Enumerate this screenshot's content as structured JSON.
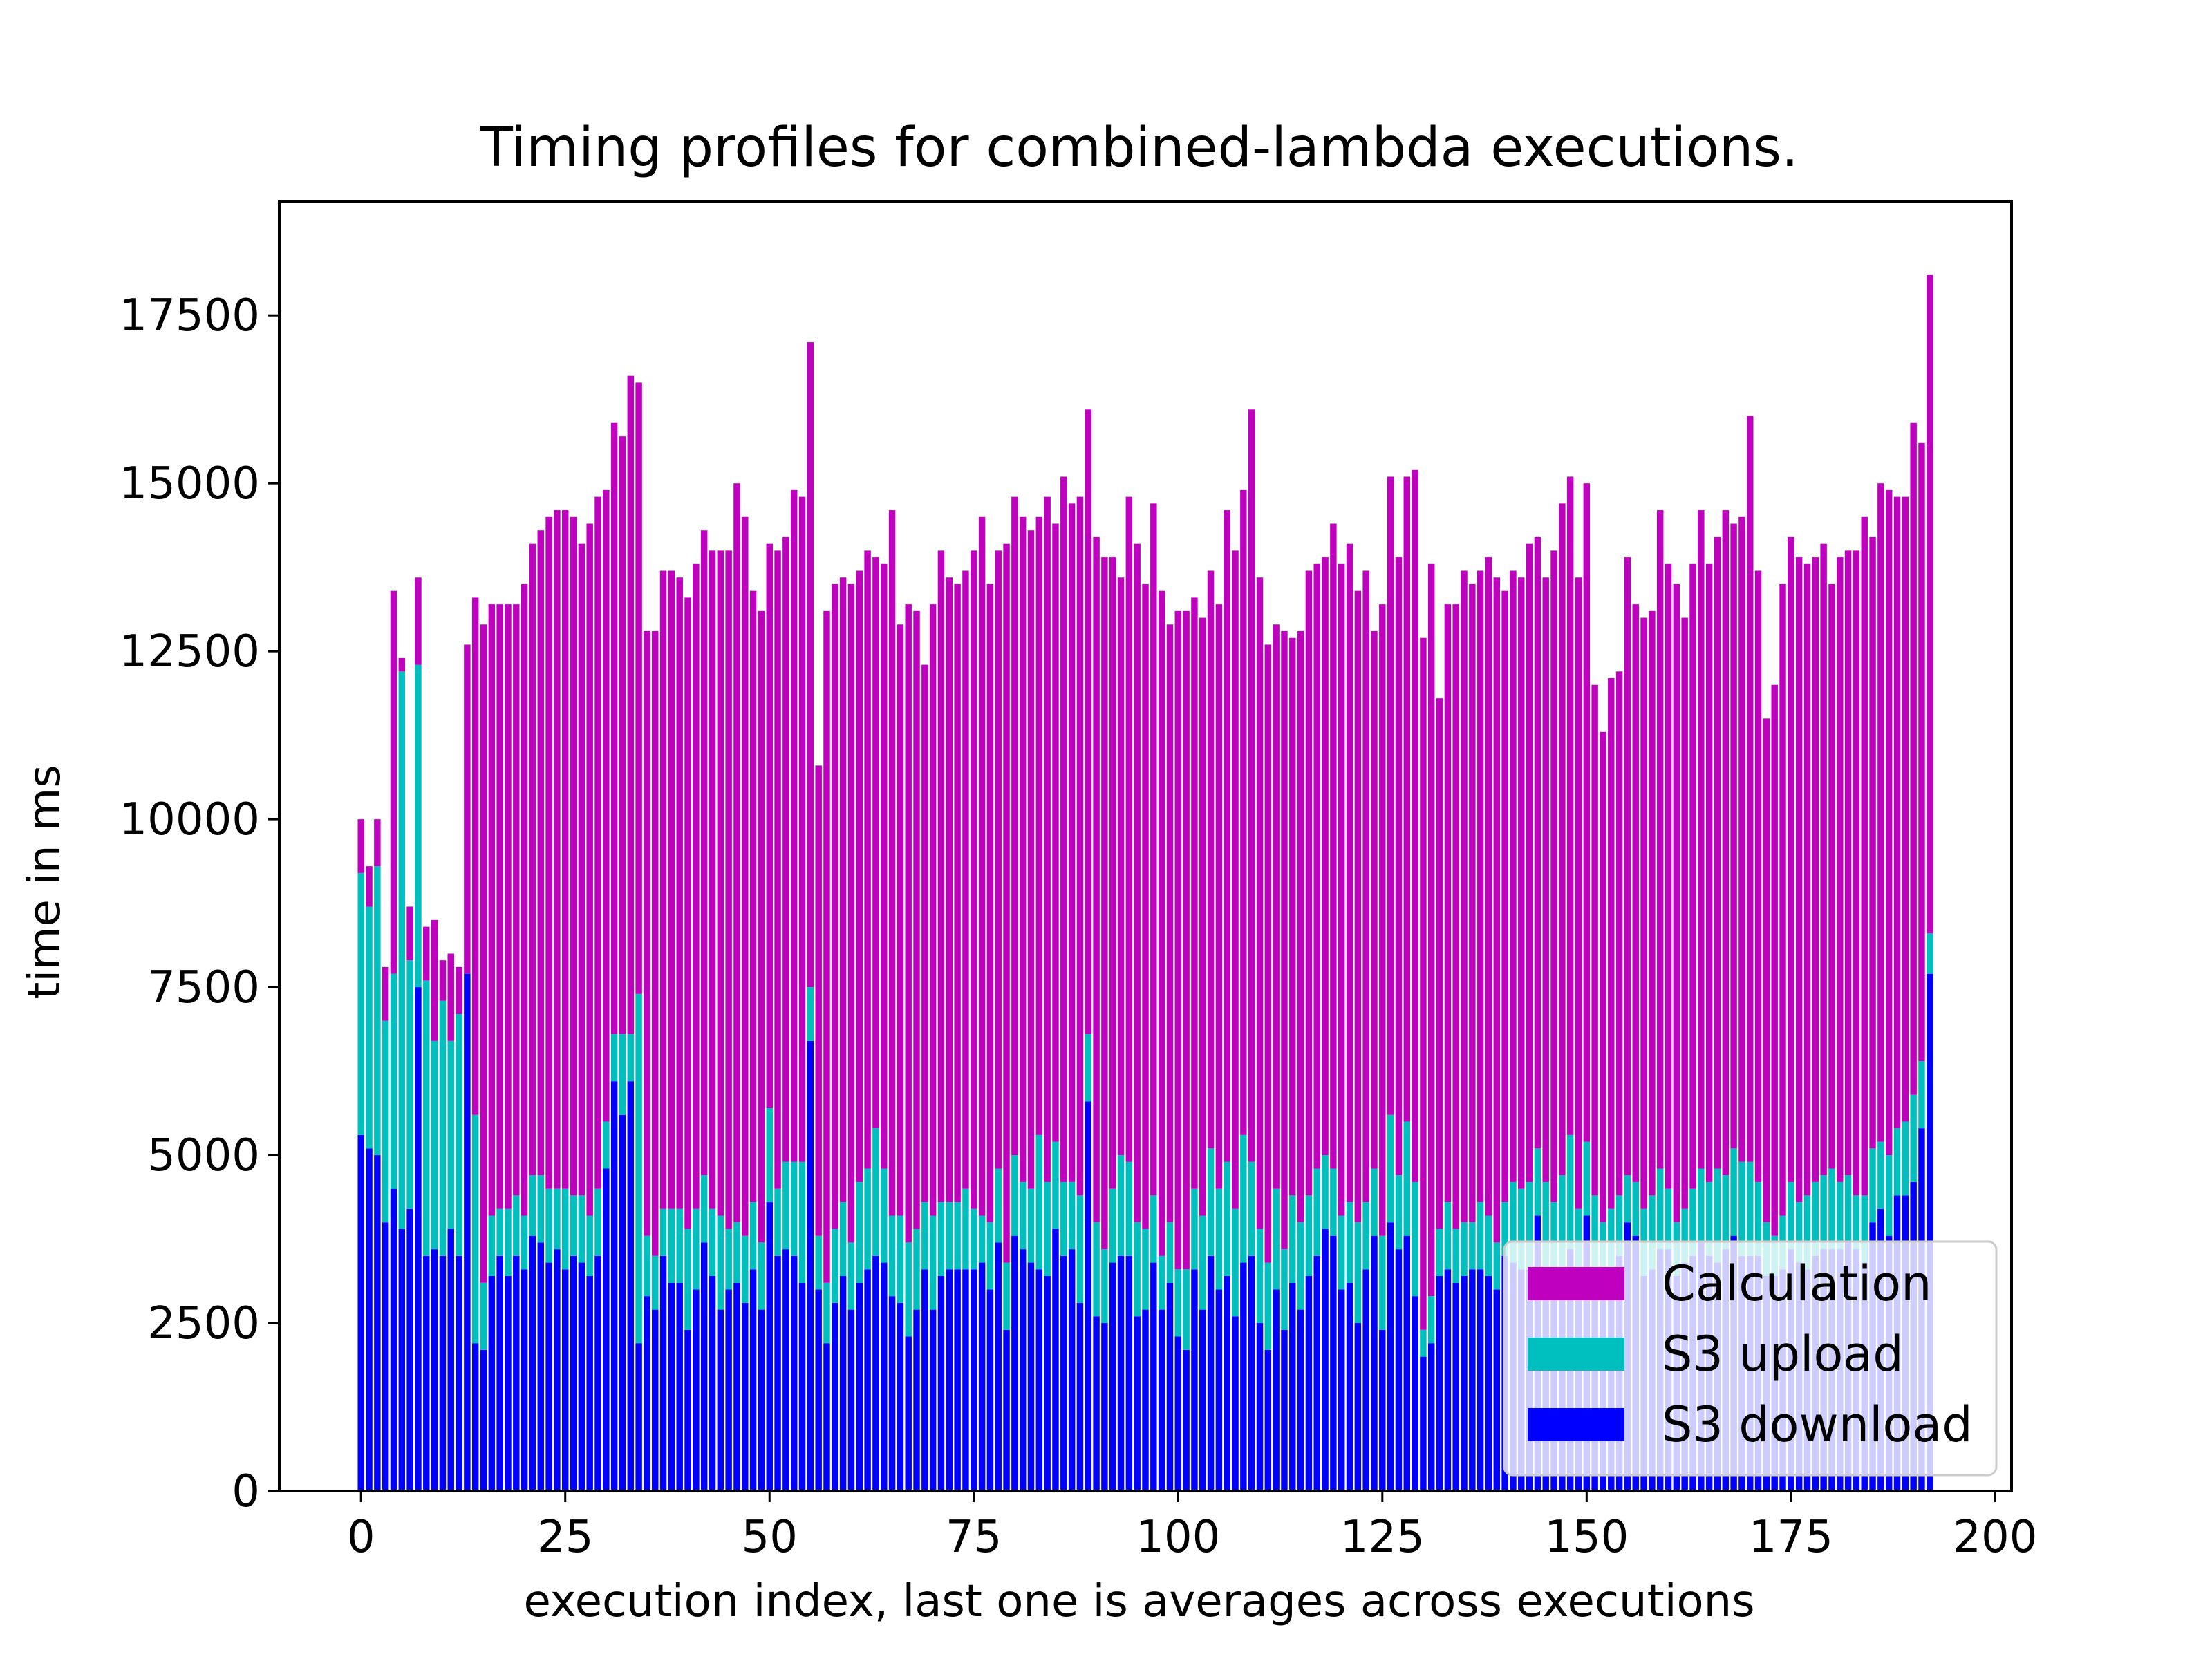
{
  "chart_data": {
    "type": "bar",
    "stacked": true,
    "title": "Timing profiles for combined-lambda executions.",
    "xlabel": "execution index, last one is averages across executions",
    "ylabel": "time in ms",
    "xlim": [
      -10,
      202
    ],
    "ylim": [
      0,
      19200
    ],
    "xticks": [
      0,
      25,
      50,
      75,
      100,
      125,
      150,
      175,
      200
    ],
    "xtick_labels": [
      "0",
      "25",
      "50",
      "75",
      "100",
      "125",
      "150",
      "175",
      "200"
    ],
    "yticks": [
      0,
      2500,
      5000,
      7500,
      10000,
      12500,
      15000,
      17500
    ],
    "ytick_labels": [
      "0",
      "2500",
      "5000",
      "7500",
      "10000",
      "12500",
      "15000",
      "17500"
    ],
    "grid": false,
    "legend_position": "lower-right",
    "x": [
      0,
      1,
      2,
      3,
      4,
      5,
      6,
      7,
      8,
      9,
      10,
      11,
      12,
      13,
      14,
      15,
      16,
      17,
      18,
      19,
      20,
      21,
      22,
      23,
      24,
      25,
      26,
      27,
      28,
      29,
      30,
      31,
      32,
      33,
      34,
      35,
      36,
      37,
      38,
      39,
      40,
      41,
      42,
      43,
      44,
      45,
      46,
      47,
      48,
      49,
      50,
      51,
      52,
      53,
      54,
      55,
      56,
      57,
      58,
      59,
      60,
      61,
      62,
      63,
      64,
      65,
      66,
      67,
      68,
      69,
      70,
      71,
      72,
      73,
      74,
      75,
      76,
      77,
      78,
      79,
      80,
      81,
      82,
      83,
      84,
      85,
      86,
      87,
      88,
      89,
      90,
      91,
      92,
      93,
      94,
      95,
      96,
      97,
      98,
      99,
      100,
      101,
      102,
      103,
      104,
      105,
      106,
      107,
      108,
      109,
      110,
      111,
      112,
      113,
      114,
      115,
      116,
      117,
      118,
      119,
      120,
      121,
      122,
      123,
      124,
      125,
      126,
      127,
      128,
      129,
      130,
      131,
      132,
      133,
      134,
      135,
      136,
      137,
      138,
      139,
      140,
      141,
      142,
      143,
      144,
      145,
      146,
      147,
      148,
      149,
      150,
      151,
      152,
      153,
      154,
      155,
      156,
      157,
      158,
      159,
      160,
      161,
      162,
      163,
      164,
      165,
      166,
      167,
      168,
      169,
      170,
      171,
      172,
      173,
      174,
      175,
      176,
      177,
      178,
      179,
      180,
      181,
      182,
      183,
      184,
      185,
      186,
      187,
      188,
      189,
      190,
      191,
      192
    ],
    "series": [
      {
        "name": "S3 download",
        "color": "#0000ff",
        "values": [
          5300,
          5100,
          5000,
          4000,
          4500,
          3900,
          4200,
          7500,
          3500,
          3600,
          3500,
          3900,
          3500,
          7700,
          2200,
          2100,
          3200,
          3500,
          3200,
          3500,
          3300,
          3800,
          3700,
          3400,
          3600,
          3300,
          3500,
          3400,
          3200,
          3500,
          4800,
          6100,
          5600,
          6100,
          2200,
          2900,
          2700,
          3500,
          3100,
          3100,
          2400,
          3000,
          3700,
          3200,
          2700,
          3000,
          3100,
          2800,
          3300,
          2700,
          4300,
          3500,
          3600,
          3500,
          3100,
          6700,
          3000,
          2200,
          2800,
          3200,
          2700,
          3100,
          3300,
          3500,
          3400,
          2900,
          2800,
          2300,
          2700,
          3300,
          2700,
          3200,
          3300,
          3300,
          3300,
          3300,
          3400,
          3000,
          3700,
          2400,
          3800,
          3600,
          3400,
          3300,
          3200,
          3900,
          3500,
          3600,
          2800,
          5800,
          2600,
          2500,
          3400,
          3500,
          3500,
          2600,
          2700,
          3400,
          2700,
          3100,
          2300,
          2100,
          3300,
          2700,
          3500,
          3000,
          3200,
          2600,
          3400,
          3500,
          2500,
          2100,
          3000,
          2400,
          3100,
          2700,
          3200,
          3500,
          3900,
          3800,
          3000,
          3100,
          2500,
          3300,
          3800,
          2400,
          4000,
          3600,
          3800,
          2900,
          2000,
          2200,
          3200,
          3300,
          3100,
          3200,
          3300,
          3300,
          3200,
          3000,
          3500,
          3400,
          3300,
          3300,
          4100,
          3200,
          3000,
          3200,
          3600,
          3200,
          4100,
          3200,
          3100,
          3200,
          3500,
          4000,
          3800,
          3200,
          3300,
          3600,
          3600,
          3200,
          3400,
          3500,
          3700,
          3500,
          3400,
          3600,
          3800,
          3500,
          3500,
          3500,
          3200,
          3200,
          3300,
          3600,
          3400,
          3300,
          3500,
          3600,
          3600,
          3600,
          3700,
          3600,
          3400,
          4000,
          4200,
          3800,
          4400,
          4400,
          4600,
          5400,
          7700
        ]
      },
      {
        "name": "S3 upload",
        "color": "#00bfbf",
        "values": [
          3900,
          3600,
          4300,
          3000,
          3200,
          8300,
          3700,
          4800,
          4100,
          3100,
          3800,
          2800,
          3600,
          0,
          3400,
          1000,
          900,
          700,
          1000,
          900,
          800,
          900,
          1000,
          1100,
          900,
          1200,
          900,
          1000,
          900,
          1000,
          700,
          700,
          1200,
          700,
          5200,
          900,
          800,
          700,
          1100,
          1100,
          1500,
          1200,
          1000,
          1000,
          1400,
          900,
          900,
          1000,
          1000,
          1000,
          1400,
          1000,
          1300,
          1400,
          1800,
          800,
          800,
          900,
          1100,
          1100,
          1000,
          1500,
          1500,
          1900,
          1400,
          1200,
          1300,
          1400,
          1200,
          1000,
          1400,
          1100,
          1000,
          1000,
          1200,
          900,
          700,
          1000,
          1100,
          1000,
          1200,
          1000,
          1100,
          2000,
          1400,
          1300,
          1100,
          1000,
          1600,
          1000,
          1400,
          1100,
          1100,
          1500,
          1400,
          1400,
          1200,
          1000,
          800,
          900,
          1000,
          1200,
          1200,
          1400,
          1600,
          1500,
          1700,
          1600,
          1900,
          1400,
          1400,
          1300,
          1500,
          1200,
          1300,
          1300,
          1200,
          1300,
          1100,
          1000,
          1100,
          1200,
          1500,
          1000,
          1000,
          1400,
          1600,
          1100,
          1700,
          1700,
          400,
          700,
          700,
          1000,
          800,
          800,
          700,
          1000,
          900,
          700,
          800,
          1200,
          1200,
          1300,
          1000,
          1400,
          1300,
          1500,
          1700,
          1000,
          1100,
          1200,
          900,
          1000,
          900,
          700,
          800,
          1000,
          1100,
          1200,
          900,
          800,
          800,
          1000,
          1100,
          1100,
          1400,
          1100,
          1300,
          1400,
          1400,
          1100,
          800,
          600,
          800,
          1000,
          900,
          1100,
          1100,
          1100,
          1200,
          1000,
          1000,
          800,
          1000,
          1100,
          1000,
          1200,
          1000,
          1100,
          1300,
          1000,
          600
        ]
      },
      {
        "name": "Calculation",
        "color": "#bf00bf",
        "values": [
          800,
          600,
          700,
          800,
          5700,
          200,
          800,
          1300,
          800,
          1800,
          600,
          1300,
          700,
          4900,
          7700,
          9800,
          9100,
          9000,
          9000,
          8800,
          9400,
          9400,
          9600,
          10000,
          10100,
          10100,
          10100,
          9700,
          10300,
          10300,
          9400,
          9100,
          8900,
          9800,
          9100,
          9000,
          9300,
          9500,
          9500,
          9400,
          9400,
          9600,
          9600,
          9800,
          9900,
          10100,
          11000,
          10700,
          9100,
          9400,
          8400,
          9500,
          9300,
          10000,
          9900,
          9600,
          7000,
          10000,
          9600,
          9300,
          9800,
          9100,
          9200,
          8500,
          9000,
          10500,
          8800,
          9500,
          9200,
          8000,
          9100,
          9700,
          9300,
          9200,
          9200,
          9800,
          10400,
          9500,
          9200,
          10700,
          9800,
          9900,
          9800,
          9200,
          10200,
          9200,
          10500,
          10100,
          10400,
          9300,
          10200,
          10300,
          9400,
          8600,
          9900,
          10100,
          9600,
          10300,
          9900,
          8900,
          9800,
          9800,
          8800,
          8900,
          8600,
          8700,
          9700,
          9800,
          9600,
          11200,
          9700,
          9200,
          8400,
          9200,
          8300,
          8800,
          9300,
          9000,
          8900,
          9600,
          9700,
          9800,
          9400,
          9400,
          8000,
          9400,
          9500,
          9200,
          9600,
          10600,
          10300,
          10900,
          7900,
          8900,
          9300,
          9700,
          9500,
          9400,
          9800,
          9900,
          9100,
          9100,
          9100,
          9500,
          9100,
          9000,
          9700,
          10000,
          9800,
          9400,
          9800,
          7600,
          7300,
          7900,
          7800,
          9200,
          8600,
          8800,
          8700,
          9800,
          9300,
          9500,
          8800,
          9300,
          9800,
          9200,
          9400,
          9900,
          9300,
          9600,
          11100,
          9100,
          7500,
          8200,
          9400,
          9600,
          9600,
          9400,
          9300,
          9400,
          8700,
          9300,
          9300,
          9600,
          10100,
          9100,
          9800,
          9900,
          9400,
          9300,
          10000,
          9200,
          9800
        ]
      }
    ],
    "legend": [
      "Calculation",
      "S3 upload",
      "S3 download"
    ]
  }
}
